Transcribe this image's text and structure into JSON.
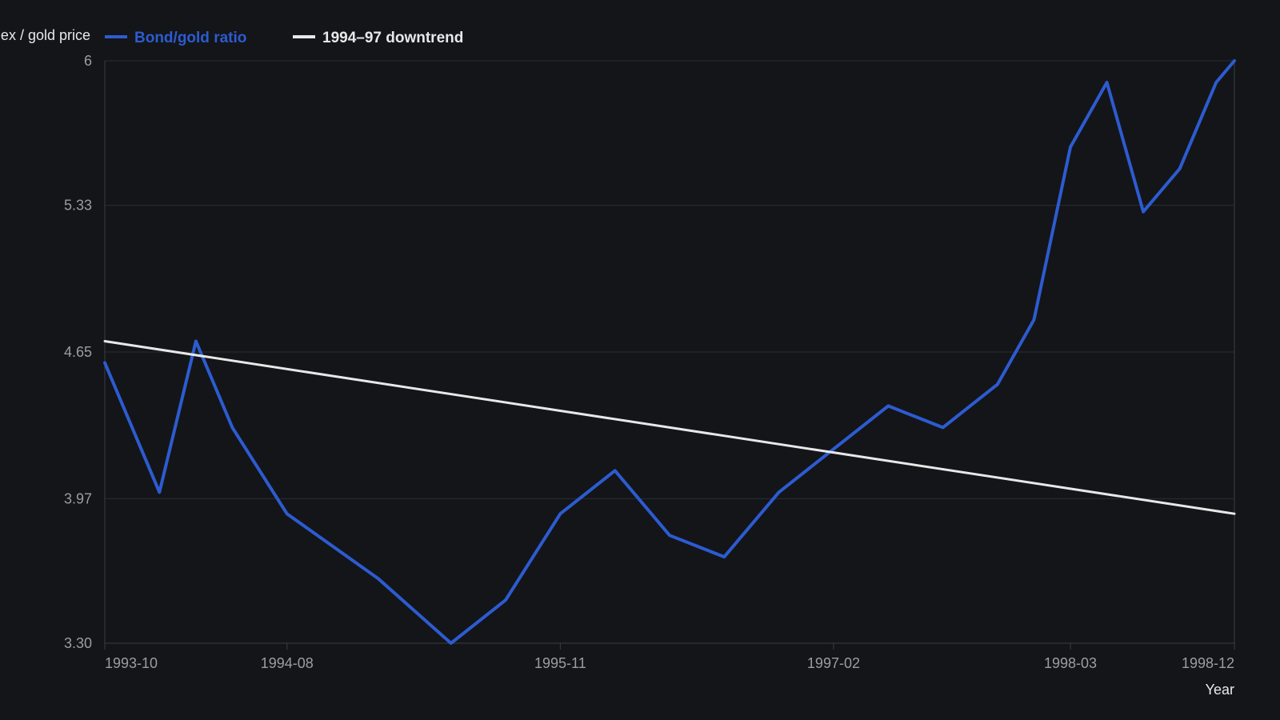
{
  "chart_data": {
    "type": "line",
    "title": "",
    "xlabel": "Year",
    "ylabel": "Bond index / gold price",
    "ylim": [
      3.3,
      6
    ],
    "y_ticks": [
      "3.30",
      "3.97",
      "4.65",
      "5.33",
      "6"
    ],
    "x_tick_labels": [
      "1993-10",
      "1994-08",
      "1995-11",
      "1997-02",
      "1998-03",
      "1998-12"
    ],
    "x_tick_values": [
      "1993-10",
      "1994-08",
      "1995-11",
      "1997-02",
      "1998-03",
      "1998-12"
    ],
    "x_range": [
      "1993-10",
      "1998-12"
    ],
    "grid": true,
    "legend_position": "top-left",
    "series": [
      {
        "name": "Bond/gold ratio",
        "color": "#2d5bd0",
        "x": [
          "1993-10",
          "1994-01",
          "1994-03",
          "1994-05",
          "1994-08",
          "1995-01",
          "1995-05",
          "1995-08",
          "1995-11",
          "1996-02",
          "1996-05",
          "1996-08",
          "1996-11",
          "1997-02",
          "1997-05",
          "1997-08",
          "1997-11",
          "1998-01",
          "1998-03",
          "1998-05",
          "1998-07",
          "1998-09",
          "1998-11",
          "1998-12"
        ],
        "values": [
          4.6,
          4.0,
          4.7,
          4.3,
          3.9,
          3.6,
          3.3,
          3.5,
          3.9,
          4.1,
          3.8,
          3.7,
          4.0,
          4.2,
          4.4,
          4.3,
          4.5,
          4.8,
          5.6,
          5.9,
          5.3,
          5.5,
          5.9,
          6.0
        ]
      },
      {
        "name": "1994–97 downtrend",
        "color": "#e8e8e8",
        "x": [
          "1993-10",
          "1998-12"
        ],
        "values": [
          4.7,
          3.9
        ]
      }
    ]
  }
}
